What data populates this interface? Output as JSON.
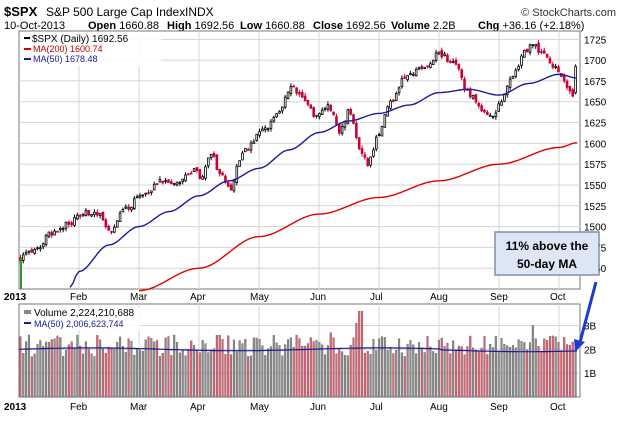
{
  "header": {
    "symbol": "$SPX",
    "name": "S&P 500 Large Cap Index",
    "exchange": "INDX",
    "watermark": "© StockCharts.com",
    "date": "10-Oct-2013",
    "open_label": "Open",
    "open": "1660.88",
    "high_label": "High",
    "high": "1692.56",
    "low_label": "Low",
    "low": "1660.88",
    "close_label": "Close",
    "close": "1692.56",
    "volume_label": "Volume",
    "volume": "2.2B",
    "chg_label": "Chg",
    "chg": "+36.16 (+2.18%)"
  },
  "legend": {
    "price": "$SPX (Daily) 1692.56",
    "ma200": "MA(200) 1600.74",
    "ma50": "MA(50) 1678.48",
    "volume": "Volume 2,224,210,688",
    "vol_ma50": "MA(50) 2,006,623,744"
  },
  "annotation": {
    "line1": "11% above the",
    "line2": "50-day MA"
  },
  "colors": {
    "up": "#000000",
    "down": "#cc0033",
    "ma200": "#e00000",
    "ma50": "#1a1aa0",
    "grid": "#d4d4d4",
    "vol_up": "#8c8c8c",
    "vol_down": "#e06070",
    "annot_fill": "#dce6f5",
    "annot_border": "#8090a8",
    "arrow": "#1a3ad0"
  },
  "chart_data": {
    "type": "candlestick",
    "title": "$SPX S&P 500 Large Cap Index INDX (Daily)",
    "x_labels": [
      "2013",
      "Feb",
      "Mar",
      "Apr",
      "May",
      "Jun",
      "Jul",
      "Aug",
      "Sep",
      "Oct"
    ],
    "x_label_positions_month": [
      0,
      1,
      2,
      3,
      4,
      5,
      6,
      7,
      8,
      9
    ],
    "x_range_months": [
      0,
      9.35
    ],
    "price_axis": {
      "min": 1425,
      "max": 1735,
      "ticks": [
        1450,
        1475,
        1500,
        1525,
        1550,
        1575,
        1600,
        1625,
        1650,
        1675,
        1700,
        1725
      ]
    },
    "price_keypoints": [
      {
        "t": 0.0,
        "c": 1462
      },
      {
        "t": 0.25,
        "c": 1470
      },
      {
        "t": 0.55,
        "c": 1492
      },
      {
        "t": 0.85,
        "c": 1505
      },
      {
        "t": 1.1,
        "c": 1516
      },
      {
        "t": 1.3,
        "c": 1517
      },
      {
        "t": 1.55,
        "c": 1495
      },
      {
        "t": 1.75,
        "c": 1521
      },
      {
        "t": 2.1,
        "c": 1540
      },
      {
        "t": 2.4,
        "c": 1556
      },
      {
        "t": 2.65,
        "c": 1552
      },
      {
        "t": 2.9,
        "c": 1568
      },
      {
        "t": 3.05,
        "c": 1559
      },
      {
        "t": 3.2,
        "c": 1590
      },
      {
        "t": 3.35,
        "c": 1562
      },
      {
        "t": 3.5,
        "c": 1545
      },
      {
        "t": 3.75,
        "c": 1592
      },
      {
        "t": 4.05,
        "c": 1614
      },
      {
        "t": 4.3,
        "c": 1633
      },
      {
        "t": 4.55,
        "c": 1668
      },
      {
        "t": 4.75,
        "c": 1655
      },
      {
        "t": 4.95,
        "c": 1632
      },
      {
        "t": 5.15,
        "c": 1645
      },
      {
        "t": 5.35,
        "c": 1615
      },
      {
        "t": 5.5,
        "c": 1638
      },
      {
        "t": 5.7,
        "c": 1588
      },
      {
        "t": 5.82,
        "c": 1576
      },
      {
        "t": 6.0,
        "c": 1614
      },
      {
        "t": 6.2,
        "c": 1650
      },
      {
        "t": 6.45,
        "c": 1680
      },
      {
        "t": 6.7,
        "c": 1688
      },
      {
        "t": 7.0,
        "c": 1707
      },
      {
        "t": 7.25,
        "c": 1697
      },
      {
        "t": 7.5,
        "c": 1660
      },
      {
        "t": 7.75,
        "c": 1638
      },
      {
        "t": 7.9,
        "c": 1633
      },
      {
        "t": 8.05,
        "c": 1653
      },
      {
        "t": 8.25,
        "c": 1684
      },
      {
        "t": 8.45,
        "c": 1710
      },
      {
        "t": 8.55,
        "c": 1722
      },
      {
        "t": 8.7,
        "c": 1710
      },
      {
        "t": 8.9,
        "c": 1695
      },
      {
        "t": 9.05,
        "c": 1678
      },
      {
        "t": 9.15,
        "c": 1665
      },
      {
        "t": 9.25,
        "c": 1655
      },
      {
        "t": 9.3,
        "c": 1692.56
      }
    ],
    "ma50_keypoints": [
      {
        "t": 0.85,
        "v": 1427
      },
      {
        "t": 1.0,
        "v": 1446
      },
      {
        "t": 1.5,
        "v": 1478
      },
      {
        "t": 2.0,
        "v": 1500
      },
      {
        "t": 2.5,
        "v": 1518
      },
      {
        "t": 3.0,
        "v": 1537
      },
      {
        "t": 3.5,
        "v": 1555
      },
      {
        "t": 4.0,
        "v": 1570
      },
      {
        "t": 4.5,
        "v": 1592
      },
      {
        "t": 5.0,
        "v": 1613
      },
      {
        "t": 5.5,
        "v": 1627
      },
      {
        "t": 6.0,
        "v": 1636
      },
      {
        "t": 6.5,
        "v": 1646
      },
      {
        "t": 7.0,
        "v": 1661
      },
      {
        "t": 7.5,
        "v": 1665
      },
      {
        "t": 8.0,
        "v": 1658
      },
      {
        "t": 8.5,
        "v": 1672
      },
      {
        "t": 9.0,
        "v": 1683
      },
      {
        "t": 9.3,
        "v": 1678.48
      }
    ],
    "ma200_keypoints": [
      {
        "t": 2.0,
        "v": 1423
      },
      {
        "t": 3.0,
        "v": 1450
      },
      {
        "t": 4.0,
        "v": 1488
      },
      {
        "t": 5.0,
        "v": 1515
      },
      {
        "t": 6.0,
        "v": 1535
      },
      {
        "t": 7.0,
        "v": 1555
      },
      {
        "t": 8.0,
        "v": 1575
      },
      {
        "t": 9.0,
        "v": 1595
      },
      {
        "t": 9.3,
        "v": 1600.74
      }
    ],
    "volume_axis": {
      "min": 0,
      "max": 3.9,
      "unit": "B",
      "ticks": [
        {
          "v": 1,
          "label": "1B"
        },
        {
          "v": 2,
          "label": "2B"
        },
        {
          "v": 3,
          "label": "3B"
        }
      ]
    },
    "volume_ma50_B": 2.0,
    "volume_spikes_B": [
      {
        "t": 0.15,
        "v": 2.6
      },
      {
        "t": 1.65,
        "v": 2.3
      },
      {
        "t": 2.1,
        "v": 2.4
      },
      {
        "t": 3.35,
        "v": 2.6
      },
      {
        "t": 4.45,
        "v": 2.2
      },
      {
        "t": 5.2,
        "v": 2.7
      },
      {
        "t": 5.65,
        "v": 3.1
      },
      {
        "t": 5.7,
        "v": 3.6
      },
      {
        "t": 6.1,
        "v": 2.5
      },
      {
        "t": 8.55,
        "v": 3.0
      },
      {
        "t": 9.1,
        "v": 2.5
      }
    ],
    "annotation_text": "11% above the 50-day MA"
  }
}
